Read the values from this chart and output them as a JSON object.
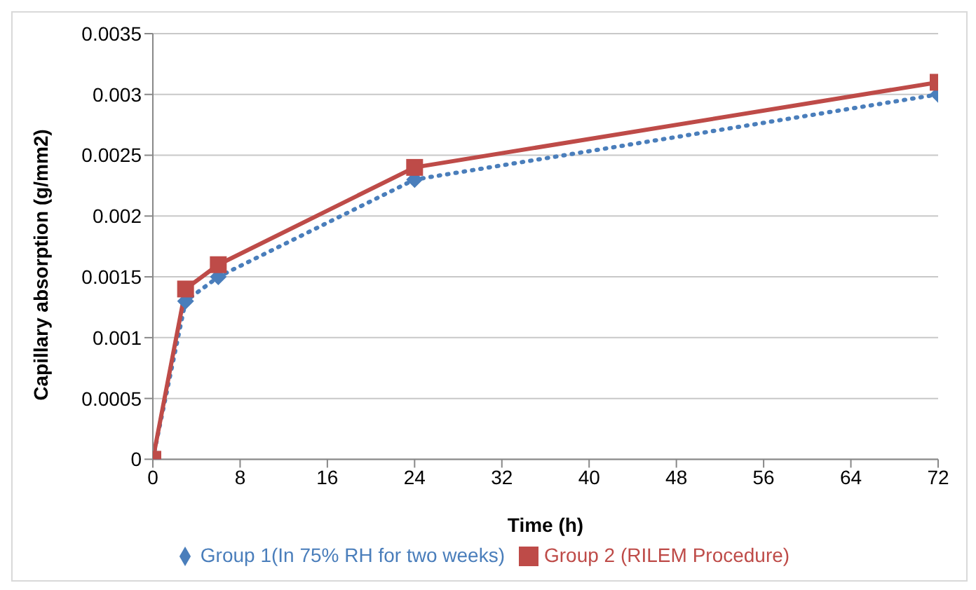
{
  "chart_data": {
    "type": "line",
    "xlabel": "Time (h)",
    "ylabel": "Capillary absorption (g/mm2)",
    "xlim": [
      0,
      72
    ],
    "xticks": [
      0,
      8,
      16,
      24,
      32,
      40,
      48,
      56,
      64,
      72
    ],
    "ylim": [
      0,
      0.0035
    ],
    "yticks": [
      0,
      0.0005,
      0.001,
      0.0015,
      0.002,
      0.0025,
      0.003,
      0.0035
    ],
    "grid": "y",
    "legend": "bottom",
    "series": [
      {
        "name": "Group 1(In 75% RH for two weeks)",
        "color": "#4a7ebb",
        "x": [
          0,
          3,
          6,
          24,
          72
        ],
        "values": [
          0,
          0.0013,
          0.0015,
          0.0023,
          0.003
        ],
        "marker": "diamond",
        "line_style": "dotted"
      },
      {
        "name": "Group 2 (RILEM Procedure)",
        "color": "#be4b48",
        "x": [
          0,
          3,
          6,
          24,
          72
        ],
        "values": [
          0,
          0.0014,
          0.0016,
          0.0024,
          0.0031
        ],
        "marker": "square",
        "line_style": "solid"
      }
    ]
  }
}
